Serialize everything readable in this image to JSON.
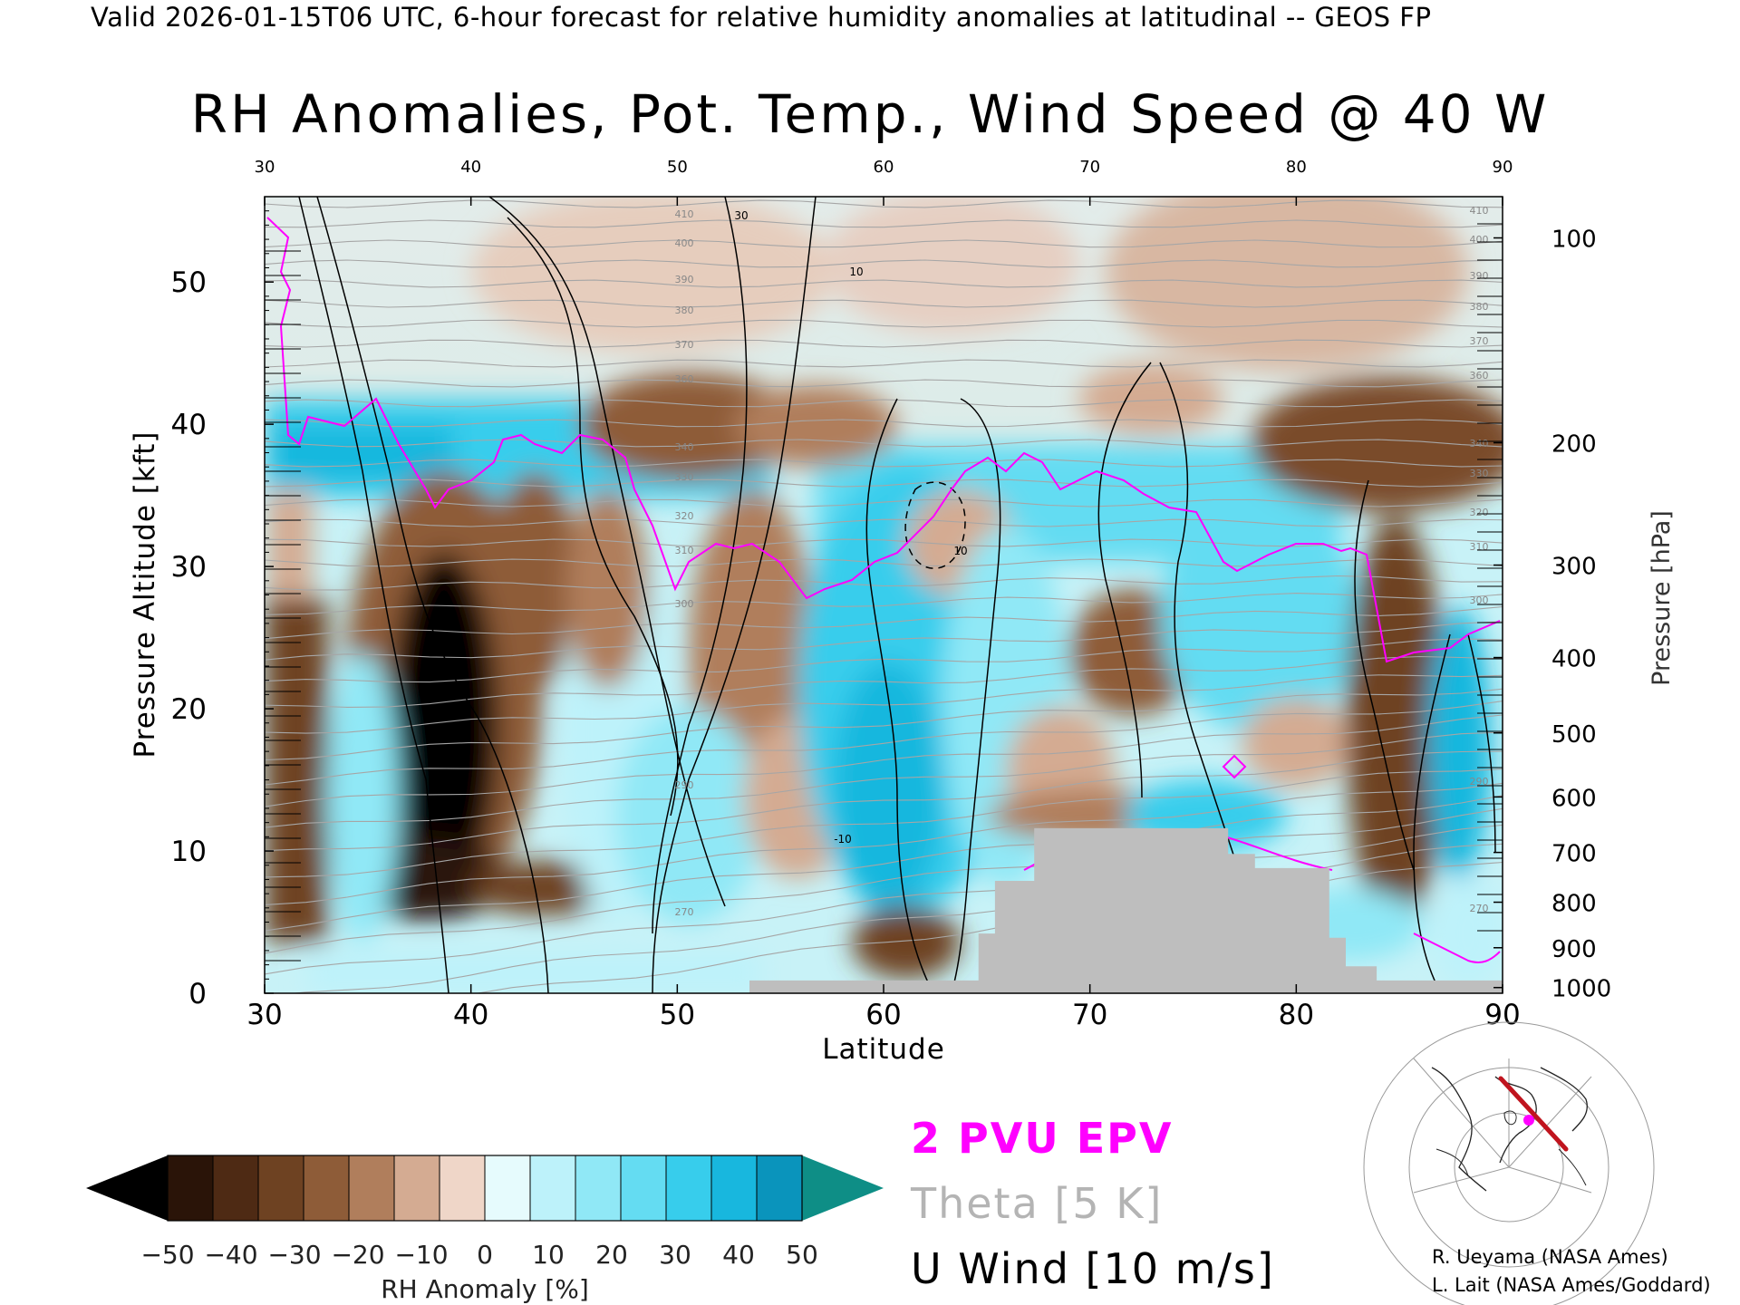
{
  "header": {
    "text": "Valid 2026-01-15T06 UTC, 6-hour forecast for relative humidity anomalies at latitudinal -- GEOS FP"
  },
  "chart_data": {
    "type": "heatmap",
    "title": "RH Anomalies, Pot. Temp., Wind Speed @ 40 W",
    "xlabel": "Latitude",
    "ylabel": "Pressure Altitude [kft]",
    "y2label": "Pressure [hPa]",
    "xlim": [
      30,
      90
    ],
    "ylim": [
      0,
      56
    ],
    "x_ticks": [
      30,
      40,
      50,
      60,
      70,
      80,
      90
    ],
    "top_x_ticks": [
      30,
      40,
      50,
      60,
      70,
      80,
      90
    ],
    "y_ticks": [
      0,
      10,
      20,
      30,
      40,
      50
    ],
    "pressure_ticks": [
      {
        "hpa": 100,
        "kft": 53.1
      },
      {
        "hpa": 200,
        "kft": 38.7
      },
      {
        "hpa": 300,
        "kft": 30.1
      },
      {
        "hpa": 400,
        "kft": 23.6
      },
      {
        "hpa": 500,
        "kft": 18.3
      },
      {
        "hpa": 600,
        "kft": 13.8
      },
      {
        "hpa": 700,
        "kft": 9.9
      },
      {
        "hpa": 800,
        "kft": 6.4
      },
      {
        "hpa": 900,
        "kft": 3.2
      },
      {
        "hpa": 1000,
        "kft": 0.4
      }
    ],
    "colorbar": {
      "label": "RH Anomaly [%]",
      "tick_labels": [
        -50,
        -40,
        -30,
        -20,
        -10,
        0,
        10,
        20,
        30,
        40,
        50
      ],
      "colors": [
        "#2a1408",
        "#4e2a14",
        "#6e4222",
        "#8e5c38",
        "#b07e5c",
        "#d4ab92",
        "#efd6c8",
        "#e6fbfd",
        "#bdf2fa",
        "#90e8f6",
        "#64dcf2",
        "#37cdec",
        "#18b7de",
        "#0a94bc"
      ],
      "under_color": "#000000",
      "over_color": "#0e8e86"
    },
    "legend": [
      {
        "label": "2 PVU EPV",
        "color": "#ff00ff"
      },
      {
        "label": "Theta [5 K]",
        "color": "#b4b4b4"
      },
      {
        "label": "U Wind [10 m/s]",
        "color": "#000000"
      }
    ],
    "theta_contour_labels": [
      410,
      400,
      390,
      380,
      370,
      360,
      340,
      330,
      320,
      310,
      300,
      290,
      270
    ],
    "wind_contour_labels": [
      10,
      30,
      -10
    ],
    "colors": {
      "epv": "#ff00ff",
      "theta": "#a6a6a6",
      "wind": "#000000",
      "terrain": "#bebebe"
    },
    "terrain_profile": [
      {
        "lat": 53.5,
        "top_kft": 0.9
      },
      {
        "lat": 64.6,
        "top_kft": 0.9
      },
      {
        "lat": 64.6,
        "top_kft": 4.2
      },
      {
        "lat": 65.4,
        "top_kft": 4.2
      },
      {
        "lat": 65.4,
        "top_kft": 7.9
      },
      {
        "lat": 67.3,
        "top_kft": 7.9
      },
      {
        "lat": 67.3,
        "top_kft": 11.6
      },
      {
        "lat": 76.7,
        "top_kft": 11.6
      },
      {
        "lat": 76.7,
        "top_kft": 9.8
      },
      {
        "lat": 78.0,
        "top_kft": 9.8
      },
      {
        "lat": 78.0,
        "top_kft": 8.8
      },
      {
        "lat": 81.6,
        "top_kft": 8.8
      },
      {
        "lat": 81.6,
        "top_kft": 3.9
      },
      {
        "lat": 82.4,
        "top_kft": 3.9
      },
      {
        "lat": 82.4,
        "top_kft": 1.9
      },
      {
        "lat": 83.9,
        "top_kft": 1.9
      },
      {
        "lat": 83.9,
        "top_kft": 0.9
      },
      {
        "lat": 90,
        "top_kft": 0.9
      }
    ]
  },
  "map_inset": {
    "name": "polar-stereographic-locator-map",
    "track_color": "#c0141e",
    "marker_color": "#ff00ff"
  },
  "credits": [
    "R. Ueyama (NASA Ames)",
    "L. Lait (NASA Ames/Goddard)"
  ]
}
